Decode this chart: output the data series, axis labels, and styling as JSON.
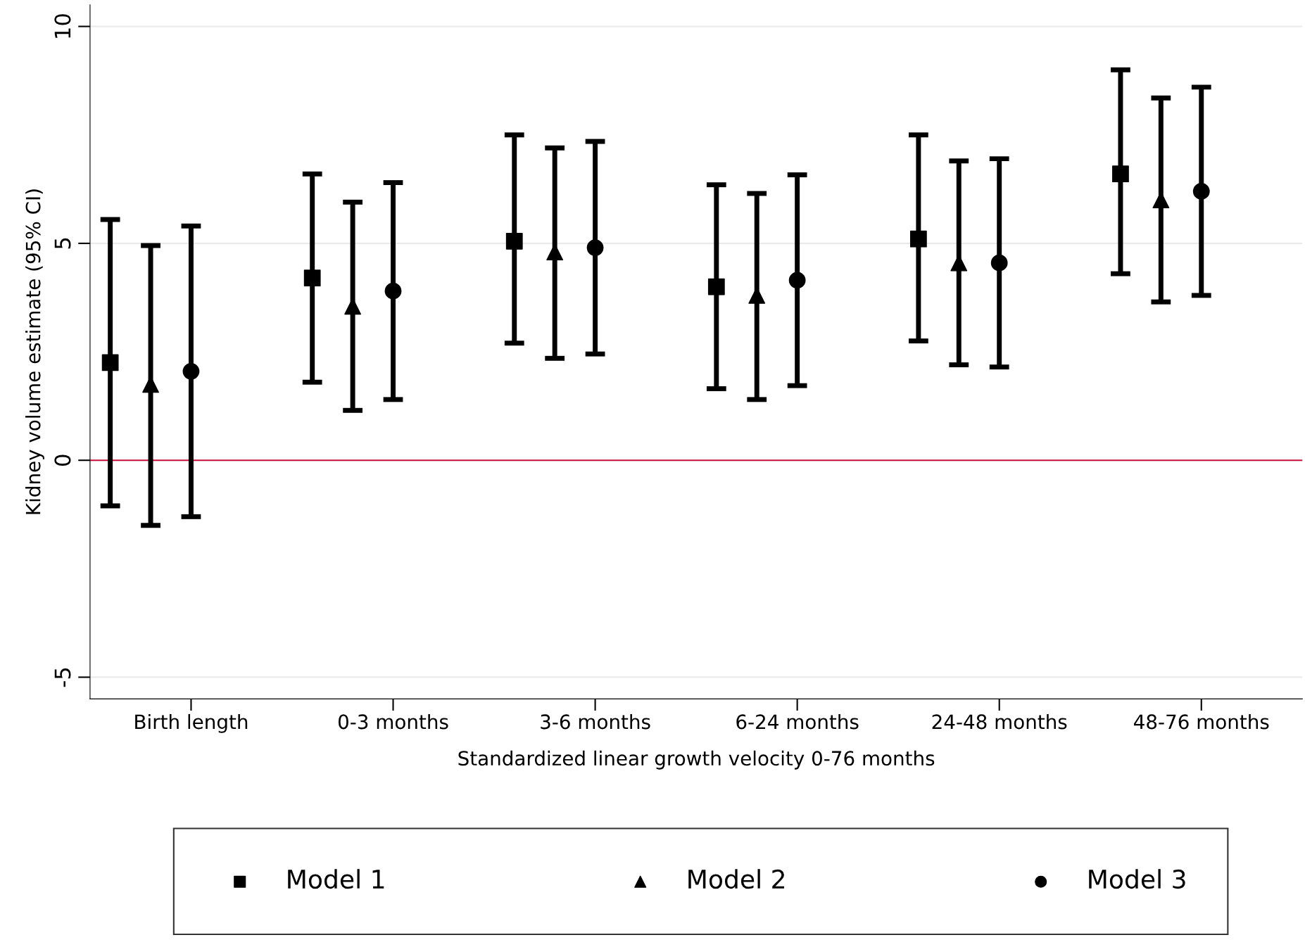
{
  "chart_data": {
    "type": "scatter",
    "xlabel": "Standardized linear growth velocity 0-76 months",
    "ylabel": "Kidney volume estimate (95% CI)",
    "categories": [
      "Birth length",
      "0-3 months",
      "3-6 months",
      "6-24 months",
      "24-48 months",
      "48-76 months"
    ],
    "series": [
      {
        "name": "Model 1",
        "color": "#000000",
        "marker": "square",
        "values": [
          2.25,
          4.2,
          5.05,
          4.0,
          5.1,
          6.6
        ],
        "errors": [
          [
            -1.05,
            5.55
          ],
          2.4,
          [
            2.7,
            7.5
          ],
          [
            1.65,
            6.35
          ],
          [
            2.75,
            7.5
          ],
          [
            4.3,
            9.0
          ]
        ]
      },
      {
        "name": "Model 2",
        "color": "#000000",
        "marker": "triangle",
        "values": [
          1.75,
          3.55,
          4.8,
          3.8,
          4.55,
          6.0
        ],
        "errors": [
          [
            -1.5,
            4.95
          ],
          [
            1.15,
            5.95
          ],
          [
            2.35,
            7.2
          ],
          [
            1.4,
            6.15
          ],
          2.35,
          2.35
        ]
      },
      {
        "name": "Model 3",
        "color": "#000000",
        "marker": "circle",
        "values": [
          2.05,
          3.9,
          4.9,
          4.15,
          4.55,
          6.2
        ],
        "errors": [
          3.35,
          2.5,
          [
            2.45,
            7.35
          ],
          2.43,
          2.4,
          [
            3.8,
            8.6
          ]
        ]
      }
    ],
    "ylim": [
      -5.5,
      10.5
    ],
    "yticks": [
      -5,
      0,
      5,
      10
    ],
    "grid": "y",
    "legend": "bottom",
    "ref_lines": [
      {
        "axis": "y",
        "value": 0,
        "color": "#c8103c"
      }
    ]
  }
}
